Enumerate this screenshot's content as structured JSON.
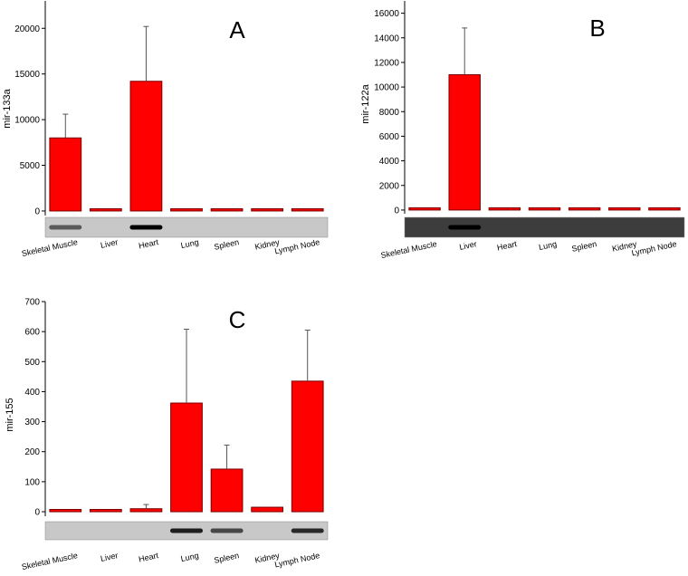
{
  "chart_data": [
    {
      "type": "bar",
      "panel_label": "A",
      "ylabel": "mir-133a",
      "ylim": [
        -500,
        23000
      ],
      "yticks": [
        0,
        5000,
        10000,
        15000,
        20000
      ],
      "categories": [
        "Skeletal Muscle",
        "Liver",
        "Heart",
        "Lung",
        "Spleen",
        "Kidney",
        "Lymph Node"
      ],
      "values": [
        8000,
        40,
        14200,
        50,
        40,
        40,
        50
      ],
      "errors": [
        2600,
        20,
        6000,
        20,
        20,
        20,
        20
      ],
      "gel_band_intensity": [
        0.55,
        0,
        1.0,
        0,
        0,
        0,
        0
      ],
      "bar_color": "#ff0000"
    },
    {
      "type": "bar",
      "panel_label": "B",
      "ylabel": "mir-122a",
      "ylim": [
        -300,
        17000
      ],
      "yticks": [
        0,
        2000,
        4000,
        6000,
        8000,
        10000,
        12000,
        14000,
        16000
      ],
      "categories": [
        "Skeletal Muscle",
        "Liver",
        "Heart",
        "Lung",
        "Spleen",
        "Kidney",
        "Lymph Node"
      ],
      "values": [
        30,
        11000,
        40,
        40,
        30,
        30,
        40
      ],
      "errors": [
        10,
        3800,
        10,
        10,
        10,
        10,
        10
      ],
      "gel_band_intensity": [
        0,
        1.0,
        0,
        0,
        0,
        0,
        0
      ],
      "bar_color": "#ff0000"
    },
    {
      "type": "bar",
      "panel_label": "C",
      "ylabel": "mir-155",
      "ylim": [
        -15,
        700
      ],
      "yticks": [
        0,
        100,
        200,
        300,
        400,
        500,
        600,
        700
      ],
      "categories": [
        "Skeletal Muscle",
        "Liver",
        "Heart",
        "Lung",
        "Spleen",
        "Kidney",
        "Lymph Node"
      ],
      "values": [
        3,
        5,
        10,
        362,
        142,
        15,
        435
      ],
      "errors": [
        2,
        3,
        14,
        246,
        80,
        8,
        170
      ],
      "gel_band_intensity": [
        0,
        0,
        0,
        0.85,
        0.65,
        0,
        0.8
      ],
      "bar_color": "#ff0000"
    }
  ]
}
